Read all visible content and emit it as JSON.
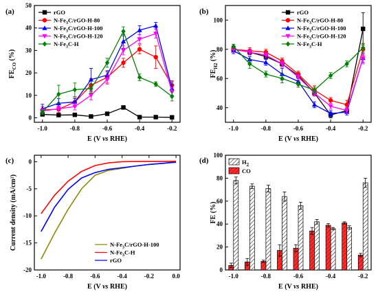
{
  "chart_data": [
    {
      "panel": "(a)",
      "type": "line",
      "ylabel": "FE",
      "ylabel_sub": "CO",
      "ylabel_unit": "(%)",
      "xlabel": "E (V vs RHE)",
      "xlim": [
        -1.05,
        -0.15
      ],
      "ylim": [
        -2,
        50
      ],
      "xticks": [
        "-1.0",
        "-0.8",
        "-0.6",
        "-0.4",
        "-0.2"
      ],
      "xtick_values": [
        -1.0,
        -0.8,
        -0.6,
        -0.4,
        -0.2
      ],
      "yticks": [
        "0",
        "10",
        "20",
        "30",
        "40",
        "50"
      ],
      "ytick_values": [
        0,
        10,
        20,
        30,
        40,
        50
      ],
      "legend_position": "top-left",
      "x": [
        -1.0,
        -0.9,
        -0.8,
        -0.7,
        -0.6,
        -0.5,
        -0.4,
        -0.3,
        -0.2
      ],
      "series": [
        {
          "name": "rGO",
          "color": "#000000",
          "marker": "square",
          "values": [
            1.5,
            1.2,
            1.3,
            0.6,
            1.8,
            4.6,
            0.3,
            0.3,
            0.2
          ],
          "errors": [
            0.3,
            0.3,
            0.3,
            0.3,
            0.4,
            0.5,
            0.2,
            0.2,
            0.2
          ]
        },
        {
          "name": "N-Fe3C/rGO-H-80",
          "color": "#ff0000",
          "marker": "circle",
          "values": [
            3.5,
            3.8,
            7.0,
            14.5,
            18.0,
            24.5,
            30.5,
            27.0,
            14.5
          ],
          "errors": [
            1.5,
            1.5,
            2.0,
            3.0,
            2.5,
            2.0,
            2.0,
            5.0,
            2.0
          ]
        },
        {
          "name": "N-Fe3C/rGO-H-100",
          "color": "#0000ff",
          "marker": "triangle-up",
          "values": [
            4.0,
            6.5,
            7.0,
            17.0,
            19.0,
            34.0,
            39.0,
            41.0,
            13.0
          ],
          "errors": [
            2.0,
            2.0,
            1.5,
            5.0,
            2.0,
            3.0,
            2.0,
            1.5,
            3.0
          ]
        },
        {
          "name": "N-Fe3C/rGO-H-120",
          "color": "#ff00ff",
          "marker": "triangle-down",
          "values": [
            3.0,
            4.0,
            5.0,
            10.0,
            17.0,
            30.0,
            35.0,
            37.5,
            11.5
          ],
          "errors": [
            1.0,
            1.0,
            1.5,
            2.0,
            2.0,
            2.0,
            2.0,
            2.0,
            2.0
          ]
        },
        {
          "name": "N-Fe3C-H",
          "color": "#008000",
          "marker": "diamond",
          "values": [
            2.5,
            10.5,
            12.5,
            13.0,
            24.5,
            38.5,
            18.0,
            15.0,
            9.5
          ],
          "errors": [
            1.0,
            4.0,
            3.0,
            2.0,
            2.0,
            2.0,
            1.5,
            1.0,
            2.0
          ]
        }
      ]
    },
    {
      "panel": "(b)",
      "type": "line",
      "ylabel": "FE",
      "ylabel_sub": "H2",
      "ylabel_unit": "(%)",
      "xlabel": "E (V vs RHE)",
      "xlim": [
        -1.05,
        -0.15
      ],
      "ylim": [
        30,
        110
      ],
      "xticks": [
        "-1.0",
        "-0.8",
        "-0.6",
        "-0.4",
        "-0.2"
      ],
      "xtick_values": [
        -1.0,
        -0.8,
        -0.6,
        -0.4,
        -0.2
      ],
      "yticks": [
        "40",
        "60",
        "80",
        "100"
      ],
      "ytick_values": [
        40,
        60,
        80,
        100
      ],
      "legend_position": "top-right",
      "x": [
        -1.0,
        -0.9,
        -0.8,
        -0.7,
        -0.6,
        -0.5,
        -0.4,
        -0.3,
        -0.2
      ],
      "series": [
        {
          "name": "rGO",
          "color": "#000000",
          "marker": "square",
          "values": [
            80,
            78,
            75,
            70,
            62,
            50,
            35,
            38,
            94
          ],
          "errors": [
            1.5,
            1.5,
            1.5,
            2,
            2,
            2,
            2,
            2,
            11
          ]
        },
        {
          "name": "N-Fe3C/rGO-H-80",
          "color": "#ff0000",
          "marker": "circle",
          "values": [
            80,
            79,
            78,
            72,
            63,
            52,
            45,
            42,
            80
          ],
          "errors": [
            2,
            2,
            2,
            2,
            2,
            3,
            2,
            3,
            4
          ]
        },
        {
          "name": "N-Fe3C/rGO-H-100",
          "color": "#0000ff",
          "marker": "triangle-up",
          "values": [
            79,
            73,
            71,
            63,
            58,
            42,
            36,
            37,
            74
          ],
          "errors": [
            2,
            2,
            2,
            4,
            2,
            2,
            2,
            2,
            3
          ]
        },
        {
          "name": "N-Fe3C/rGO-H-120",
          "color": "#ff00ff",
          "marker": "triangle-down",
          "values": [
            80,
            78,
            76,
            70,
            61,
            50,
            41,
            38,
            74
          ],
          "errors": [
            2,
            2,
            2,
            2,
            2,
            2,
            2,
            2,
            4
          ]
        },
        {
          "name": "N-Fe3C-H",
          "color": "#008000",
          "marker": "diamond",
          "values": [
            82,
            70,
            63,
            60,
            56,
            52,
            62,
            70,
            81
          ],
          "errors": [
            1.5,
            3,
            2,
            3,
            2,
            2,
            2,
            2,
            3
          ]
        }
      ]
    },
    {
      "panel": "(c)",
      "type": "line",
      "ylabel": "Current density (mA/cm²)",
      "xlabel": "E (V vs RHE)",
      "xlim": [
        -1.05,
        0.03
      ],
      "ylim": [
        -20,
        1.2
      ],
      "xticks": [
        "-1.0",
        "-0.8",
        "-0.6",
        "-0.4",
        "-0.2",
        "0.0"
      ],
      "xtick_values": [
        -1.0,
        -0.8,
        -0.6,
        -0.4,
        -0.2,
        0.0
      ],
      "yticks": [
        "0",
        "-5",
        "-10",
        "-15",
        "-20"
      ],
      "ytick_values": [
        0,
        -5,
        -10,
        -15,
        -20
      ],
      "legend_position": "bottom-right",
      "x": [
        -1.0,
        -0.9,
        -0.8,
        -0.7,
        -0.6,
        -0.5,
        -0.4,
        -0.3,
        -0.2,
        -0.1,
        0.0
      ],
      "series": [
        {
          "name": "N-Fe3C/rGO-H-100",
          "color": "#8b8b00",
          "values": [
            -18.0,
            -13.2,
            -8.8,
            -5.0,
            -2.5,
            -1.6,
            -1.2,
            -0.8,
            -0.5,
            -0.3,
            0.0
          ]
        },
        {
          "name": "N-Fe3C-H",
          "color": "#ff0000",
          "values": [
            -9.6,
            -6.2,
            -3.6,
            -1.8,
            -0.7,
            -0.2,
            0.0,
            0.05,
            0.05,
            0.05,
            0.1
          ]
        },
        {
          "name": "rGO",
          "color": "#0000ff",
          "values": [
            -12.9,
            -8.4,
            -5.1,
            -3.0,
            -2.0,
            -1.4,
            -1.1,
            -0.8,
            -0.5,
            -0.3,
            -0.1
          ]
        }
      ]
    },
    {
      "panel": "(d)",
      "type": "bar",
      "ylabel": "FE (%)",
      "xlabel": "E (V vs RHE)",
      "xlim": [
        -1.05,
        -0.15
      ],
      "ylim": [
        0,
        100
      ],
      "xticks": [
        "-1.0",
        "-0.8",
        "-0.6",
        "-0.4",
        "-0.2"
      ],
      "xtick_values": [
        -1.0,
        -0.8,
        -0.6,
        -0.4,
        -0.2
      ],
      "yticks": [
        "0",
        "20",
        "40",
        "60",
        "80",
        "100"
      ],
      "ytick_values": [
        0,
        20,
        40,
        60,
        80,
        100
      ],
      "legend_position": "top-left",
      "x": [
        -1.0,
        -0.9,
        -0.8,
        -0.7,
        -0.6,
        -0.5,
        -0.4,
        -0.3,
        -0.2
      ],
      "series": [
        {
          "name": "H2",
          "name_main": "H",
          "name_sub": "2",
          "fill": "hatch",
          "color": "#000000",
          "values": [
            78,
            73,
            71,
            64,
            56,
            42,
            36,
            37,
            76
          ],
          "errors": [
            3,
            2,
            3,
            4,
            3,
            2,
            1,
            1.5,
            4
          ]
        },
        {
          "name": "CO",
          "name_main": "CO",
          "name_sub": "",
          "fill": "red-hatch",
          "color": "#ff0000",
          "values": [
            4,
            7,
            7.5,
            17,
            19,
            34,
            39,
            41,
            13
          ],
          "errors": [
            2,
            3,
            1,
            5,
            3,
            3,
            1.5,
            1,
            1.5
          ]
        }
      ]
    }
  ]
}
